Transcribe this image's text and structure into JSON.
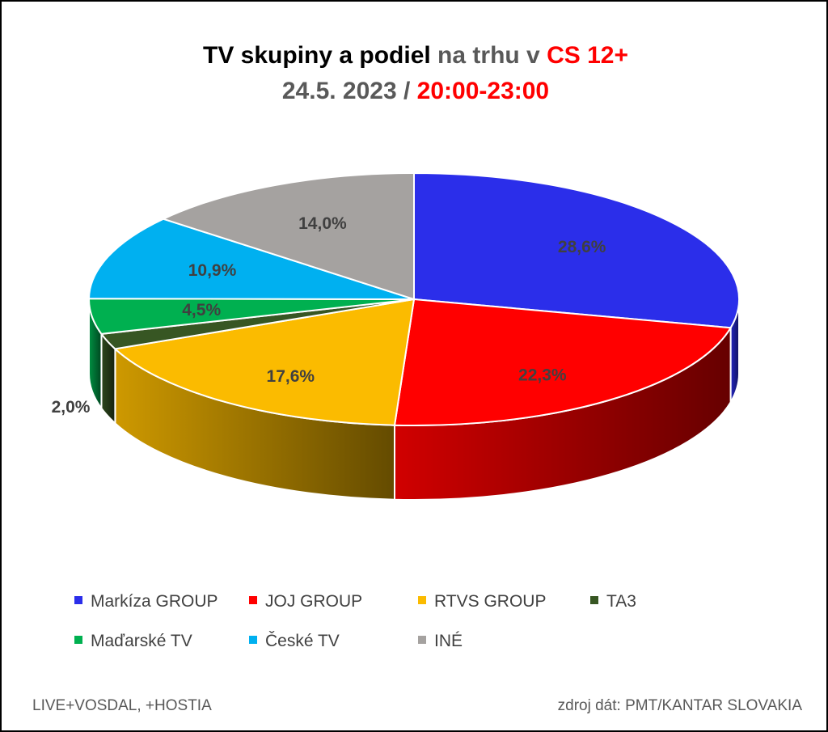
{
  "title": {
    "line1_a": "TV skupiny a podiel",
    "line1_b": " na trhu v ",
    "line1_c": "CS 12+",
    "line2_a": "24.5. 2023 / ",
    "line2_b": "20:00-23:00"
  },
  "chart_data": {
    "type": "pie",
    "style": "3d",
    "legend_position": "bottom",
    "categories": [
      "Markíza GROUP",
      "JOJ GROUP",
      "RTVS GROUP",
      "TA3",
      "Maďarské  TV",
      "České  TV",
      "INÉ"
    ],
    "values": [
      28.6,
      22.3,
      17.6,
      2.0,
      4.5,
      10.9,
      14.0
    ],
    "labels": [
      "28,6%",
      "22,3%",
      "17,6%",
      "2,0%",
      "4,5%",
      "10,9%",
      "14,0%"
    ],
    "colors": [
      "#2b2eea",
      "#ff0000",
      "#fbbb00",
      "#375623",
      "#00b050",
      "#00b0f0",
      "#a5a2a0"
    ]
  },
  "footer": {
    "left": "LIVE+VOSDAL, +HOSTIA",
    "right": "zdroj dát: PMT/KANTAR SLOVAKIA"
  }
}
